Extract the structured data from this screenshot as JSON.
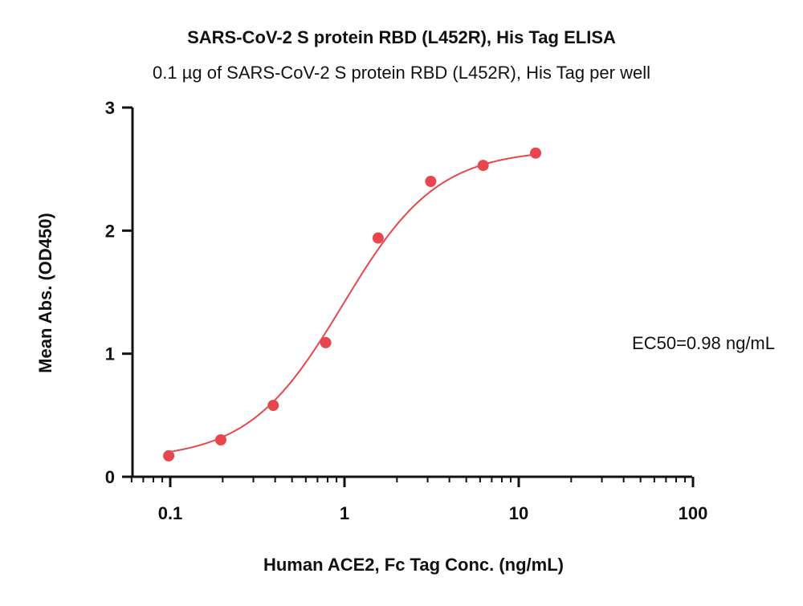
{
  "chart_data": {
    "type": "scatter",
    "title": "SARS-CoV-2 S protein RBD (L452R), His Tag ELISA",
    "subtitle": "0.1 µg of SARS-CoV-2 S protein RBD (L452R), His Tag per well",
    "xlabel": "Human ACE2, Fc Tag Conc. (ng/mL)",
    "ylabel": "Mean Abs. (OD450)",
    "xscale": "log",
    "xlim": [
      0.06,
      100
    ],
    "ylim": [
      0,
      3
    ],
    "xticks": [
      0.1,
      1,
      10,
      100
    ],
    "xtick_labels": [
      "0.1",
      "1",
      "10",
      "100"
    ],
    "yticks": [
      0,
      1,
      2,
      3
    ],
    "ytick_labels": [
      "0",
      "1",
      "2",
      "3"
    ],
    "grid": false,
    "series": [
      {
        "x": [
          0.098,
          0.195,
          0.39,
          0.78,
          1.56,
          3.125,
          6.25,
          12.5
        ],
        "y": [
          0.17,
          0.3,
          0.58,
          1.09,
          1.94,
          2.4,
          2.53,
          2.63
        ],
        "color": "#e8464e"
      }
    ],
    "fit_curve": {
      "type": "4PL",
      "bottom": 0.14,
      "top": 2.66,
      "ec50": 0.98,
      "hill": 1.6,
      "color": "#e8464e"
    },
    "annotations": [
      {
        "text": "EC50=0.98 ng/mL"
      }
    ]
  }
}
